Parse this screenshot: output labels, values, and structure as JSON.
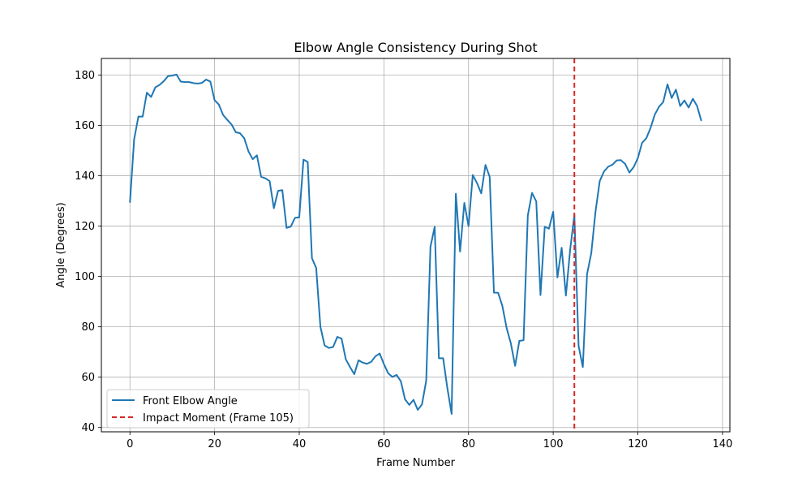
{
  "chart_data": {
    "type": "line",
    "title": "Elbow Angle Consistency During Shot",
    "xlabel": "Frame Number",
    "ylabel": "Angle (Degrees)",
    "xlim": [
      -6.75,
      141.75
    ],
    "ylim": [
      38.3,
      186.6
    ],
    "xticks": [
      0,
      20,
      40,
      60,
      80,
      100,
      120,
      140
    ],
    "yticks": [
      40,
      60,
      80,
      100,
      120,
      140,
      160,
      180
    ],
    "grid": true,
    "legend_position": "lower-left",
    "series": [
      {
        "name": "Front Elbow Angle",
        "color": "#1f77b4",
        "x": [
          0,
          1,
          2,
          3,
          4,
          5,
          6,
          7,
          8,
          9,
          10,
          11,
          12,
          13,
          14,
          15,
          16,
          17,
          18,
          19,
          20,
          21,
          22,
          23,
          24,
          25,
          26,
          27,
          28,
          29,
          30,
          31,
          32,
          33,
          34,
          35,
          36,
          37,
          38,
          39,
          40,
          41,
          42,
          43,
          44,
          45,
          46,
          47,
          48,
          49,
          50,
          51,
          52,
          53,
          54,
          55,
          56,
          57,
          58,
          59,
          60,
          61,
          62,
          63,
          64,
          65,
          66,
          67,
          68,
          69,
          70,
          71,
          72,
          73,
          74,
          75,
          76,
          77,
          78,
          79,
          80,
          81,
          82,
          83,
          84,
          85,
          86,
          87,
          88,
          89,
          90,
          91,
          92,
          93,
          94,
          95,
          96,
          97,
          98,
          99,
          100,
          101,
          102,
          103,
          104,
          105,
          106,
          107,
          108,
          109,
          110,
          111,
          112,
          113,
          114,
          115,
          116,
          117,
          118,
          119,
          120,
          121,
          122,
          123,
          124,
          125,
          126,
          127,
          128,
          129,
          130,
          131,
          132,
          133,
          134,
          135
        ],
        "values": [
          129.3,
          154.6,
          163.5,
          163.5,
          173.0,
          171.3,
          175.1,
          176.1,
          177.6,
          179.6,
          179.8,
          180.2,
          177.4,
          177.2,
          177.2,
          176.8,
          176.6,
          176.9,
          178.2,
          177.4,
          170.0,
          168.3,
          164.2,
          162.2,
          160.4,
          157.3,
          156.9,
          154.9,
          149.7,
          146.6,
          148.1,
          139.6,
          139.0,
          137.9,
          127.1,
          134.0,
          134.3,
          119.3,
          119.8,
          123.3,
          123.5,
          146.4,
          145.5,
          107.3,
          103.4,
          80.0,
          72.6,
          71.6,
          72.0,
          76.0,
          75.3,
          67.1,
          64.0,
          61.2,
          66.7,
          65.8,
          65.3,
          66.1,
          68.3,
          69.4,
          65.2,
          61.6,
          60.1,
          60.9,
          58.4,
          51.2,
          49.0,
          51.0,
          47.0,
          49.2,
          58.6,
          111.8,
          119.7,
          67.5,
          67.5,
          55.6,
          45.4,
          132.9,
          109.9,
          129.2,
          120.0,
          140.3,
          137.1,
          133.0,
          144.3,
          139.5,
          93.6,
          93.5,
          88.2,
          79.5,
          73.4,
          64.5,
          74.4,
          74.7,
          124.2,
          133.2,
          129.8,
          92.6,
          119.7,
          119.0,
          125.7,
          99.6,
          111.4,
          92.4,
          110.5,
          124.4,
          72.4,
          64.0,
          100.9,
          109.3,
          125.8,
          137.9,
          141.7,
          143.6,
          144.4,
          146.1,
          146.2,
          144.7,
          141.3,
          143.4,
          147.0,
          153.1,
          154.9,
          159.0,
          164.3,
          167.4,
          169.3,
          176.3,
          170.9,
          174.2,
          167.7,
          169.9,
          167.1,
          170.6,
          167.7,
          161.8
        ]
      }
    ],
    "annotations": [
      {
        "name": "Impact Moment (Frame 105)",
        "type": "vline",
        "x": 105,
        "color": "#d62728",
        "style": "dashed"
      }
    ]
  }
}
